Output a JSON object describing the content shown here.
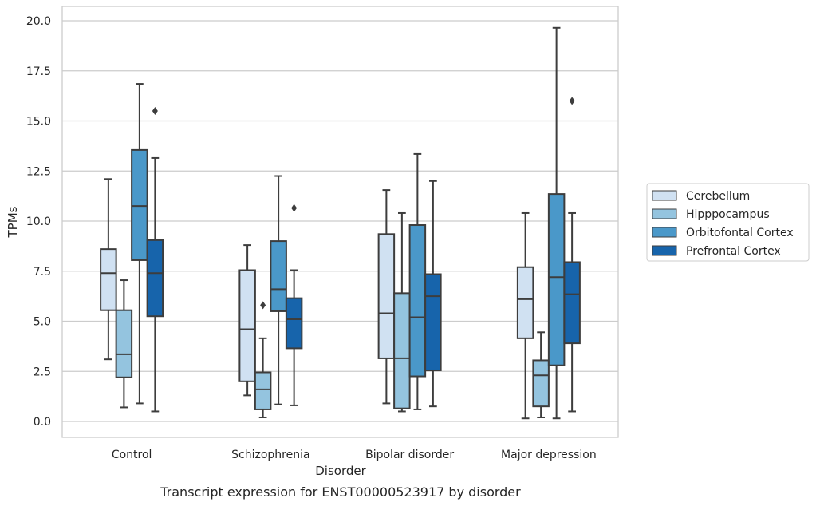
{
  "caption": "Transcript expression for ENST00000523917 by disorder",
  "chart_data": {
    "type": "box",
    "xlabel": "Disorder",
    "ylabel": "TPMs",
    "ylim": [
      -0.6,
      20.6
    ],
    "yticks": [
      0.0,
      2.5,
      5.0,
      7.5,
      10.0,
      12.5,
      15.0,
      17.5,
      20.0
    ],
    "ytick_labels": [
      "0.0",
      "2.5",
      "5.0",
      "7.5",
      "10.0",
      "12.5",
      "15.0",
      "17.5",
      "20.0"
    ],
    "grid": true,
    "legend_position": "right",
    "categories": [
      "Control",
      "Schizophrenia",
      "Bipolar disorder",
      "Major depression"
    ],
    "series": [
      {
        "name": "Cerebellum",
        "color": "#d0e1f2",
        "boxes": [
          {
            "whisker_low": 3.1,
            "q1": 5.55,
            "median": 7.4,
            "q3": 8.6,
            "whisker_high": 12.1,
            "outliers": []
          },
          {
            "whisker_low": 1.3,
            "q1": 2.0,
            "median": 4.6,
            "q3": 7.55,
            "whisker_high": 8.8,
            "outliers": []
          },
          {
            "whisker_low": 0.9,
            "q1": 3.15,
            "median": 5.4,
            "q3": 9.35,
            "whisker_high": 11.55,
            "outliers": []
          },
          {
            "whisker_low": 0.15,
            "q1": 4.15,
            "median": 6.1,
            "q3": 7.7,
            "whisker_high": 10.4,
            "outliers": []
          }
        ]
      },
      {
        "name": "Hipppocampus",
        "color": "#94c4df",
        "boxes": [
          {
            "whisker_low": 0.7,
            "q1": 2.2,
            "median": 3.35,
            "q3": 5.55,
            "whisker_high": 7.05,
            "outliers": []
          },
          {
            "whisker_low": 0.2,
            "q1": 0.6,
            "median": 1.6,
            "q3": 2.45,
            "whisker_high": 4.15,
            "outliers": [
              5.8
            ]
          },
          {
            "whisker_low": 0.5,
            "q1": 0.65,
            "median": 3.15,
            "q3": 6.4,
            "whisker_high": 10.4,
            "outliers": []
          },
          {
            "whisker_low": 0.2,
            "q1": 0.75,
            "median": 2.3,
            "q3": 3.05,
            "whisker_high": 4.45,
            "outliers": []
          }
        ]
      },
      {
        "name": "Orbitofontal Cortex",
        "color": "#4a98c9",
        "boxes": [
          {
            "whisker_low": 0.9,
            "q1": 8.05,
            "median": 10.75,
            "q3": 13.55,
            "whisker_high": 16.85,
            "outliers": []
          },
          {
            "whisker_low": 0.85,
            "q1": 5.5,
            "median": 6.6,
            "q3": 9.0,
            "whisker_high": 12.25,
            "outliers": []
          },
          {
            "whisker_low": 0.6,
            "q1": 2.25,
            "median": 5.2,
            "q3": 9.8,
            "whisker_high": 13.35,
            "outliers": []
          },
          {
            "whisker_low": 0.15,
            "q1": 2.8,
            "median": 7.2,
            "q3": 11.35,
            "whisker_high": 19.65,
            "outliers": []
          }
        ]
      },
      {
        "name": "Prefrontal Cortex",
        "color": "#1764ab",
        "boxes": [
          {
            "whisker_low": 0.5,
            "q1": 5.25,
            "median": 7.4,
            "q3": 9.05,
            "whisker_high": 13.15,
            "outliers": [
              15.5
            ]
          },
          {
            "whisker_low": 0.8,
            "q1": 3.65,
            "median": 5.1,
            "q3": 6.15,
            "whisker_high": 7.55,
            "outliers": [
              10.65
            ]
          },
          {
            "whisker_low": 0.75,
            "q1": 2.55,
            "median": 6.25,
            "q3": 7.35,
            "whisker_high": 12.0,
            "outliers": []
          },
          {
            "whisker_low": 0.5,
            "q1": 3.9,
            "median": 6.35,
            "q3": 7.95,
            "whisker_high": 10.4,
            "outliers": [
              16.0
            ]
          }
        ]
      }
    ]
  }
}
